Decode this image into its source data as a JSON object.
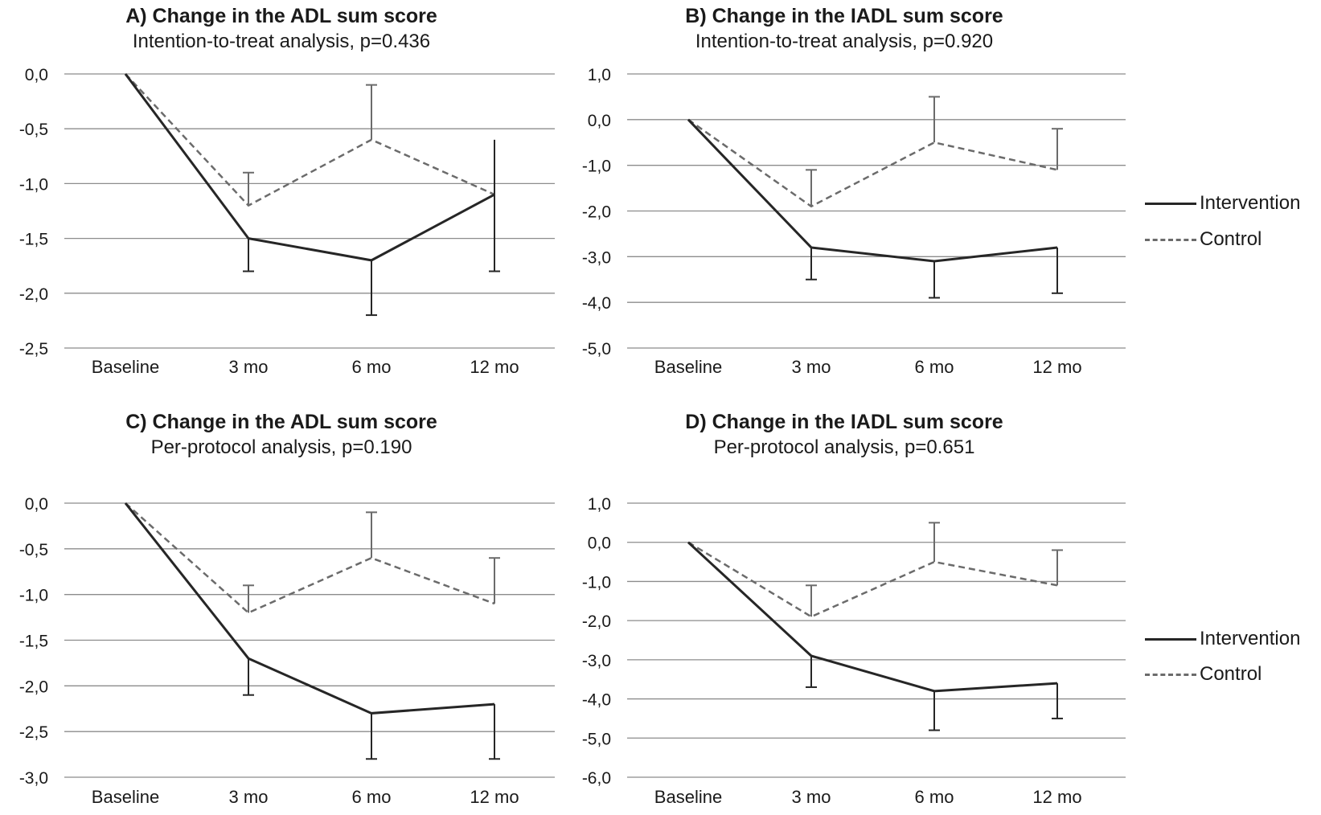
{
  "chart_data": [
    {
      "type": "line",
      "title": "A) Change in the ADL sum score",
      "subtitle": "Intention-to-treat analysis, p=0.436",
      "categories": [
        "Baseline",
        "3 mo",
        "6 mo",
        "12 mo"
      ],
      "ylim": [
        -2.5,
        0.0
      ],
      "yticks": [
        0.0,
        -0.5,
        -1.0,
        -1.5,
        -2.0,
        -2.5
      ],
      "ytick_labels": [
        "0,0",
        "-0,5",
        "-1,0",
        "-1,5",
        "-2,0",
        "-2,5"
      ],
      "grid": true,
      "series": [
        {
          "name": "Intervention",
          "values": [
            0.0,
            -1.5,
            -1.7,
            -1.1
          ],
          "err_lower": [
            null,
            -1.8,
            -2.2,
            -1.8
          ],
          "err_upper": [
            null,
            -1.5,
            -1.7,
            -0.6
          ],
          "color": "#262626",
          "dash": "solid"
        },
        {
          "name": "Control",
          "values": [
            0.0,
            -1.2,
            -0.6,
            -1.1
          ],
          "err_lower": [
            null,
            -1.2,
            -0.6,
            -1.1
          ],
          "err_upper": [
            null,
            -0.9,
            -0.1,
            -1.1
          ],
          "color": "#6b6b6b",
          "dash": "dashed"
        }
      ]
    },
    {
      "type": "line",
      "title": "B) Change in the IADL sum score",
      "subtitle": "Intention-to-treat analysis, p=0.920",
      "categories": [
        "Baseline",
        "3 mo",
        "6 mo",
        "12 mo"
      ],
      "ylim": [
        -5.0,
        1.0
      ],
      "yticks": [
        1.0,
        0.0,
        -1.0,
        -2.0,
        -3.0,
        -4.0,
        -5.0
      ],
      "ytick_labels": [
        "1,0",
        "0,0",
        "-1,0",
        "-2,0",
        "-3,0",
        "-4,0",
        "-5,0"
      ],
      "grid": true,
      "legend": "right",
      "series": [
        {
          "name": "Intervention",
          "values": [
            0.0,
            -2.8,
            -3.1,
            -2.8
          ],
          "err_lower": [
            null,
            -3.5,
            -3.9,
            -3.8
          ],
          "err_upper": [
            null,
            -2.8,
            -3.1,
            -2.8
          ],
          "color": "#262626",
          "dash": "solid"
        },
        {
          "name": "Control",
          "values": [
            0.0,
            -1.9,
            -0.5,
            -1.1
          ],
          "err_lower": [
            null,
            -1.9,
            -0.5,
            -1.1
          ],
          "err_upper": [
            null,
            -1.1,
            0.5,
            -0.2
          ],
          "color": "#6b6b6b",
          "dash": "dashed"
        }
      ]
    },
    {
      "type": "line",
      "title": "C) Change in the ADL sum score",
      "subtitle": "Per-protocol analysis, p=0.190",
      "categories": [
        "Baseline",
        "3 mo",
        "6 mo",
        "12 mo"
      ],
      "ylim": [
        -3.0,
        0.0
      ],
      "yticks": [
        0.0,
        -0.5,
        -1.0,
        -1.5,
        -2.0,
        -2.5,
        -3.0
      ],
      "ytick_labels": [
        "0,0",
        "-0,5",
        "-1,0",
        "-1,5",
        "-2,0",
        "-2,5",
        "-3,0"
      ],
      "grid": true,
      "series": [
        {
          "name": "Intervention",
          "values": [
            0.0,
            -1.7,
            -2.3,
            -2.2
          ],
          "err_lower": [
            null,
            -2.1,
            -2.8,
            -2.8
          ],
          "err_upper": [
            null,
            -1.7,
            -2.3,
            -2.2
          ],
          "color": "#262626",
          "dash": "solid"
        },
        {
          "name": "Control",
          "values": [
            0.0,
            -1.2,
            -0.6,
            -1.1
          ],
          "err_lower": [
            null,
            -1.2,
            -0.6,
            -1.1
          ],
          "err_upper": [
            null,
            -0.9,
            -0.1,
            -0.6
          ],
          "color": "#6b6b6b",
          "dash": "dashed"
        }
      ]
    },
    {
      "type": "line",
      "title": "D) Change in the IADL sum score",
      "subtitle": "Per-protocol analysis, p=0.651",
      "categories": [
        "Baseline",
        "3 mo",
        "6 mo",
        "12 mo"
      ],
      "ylim": [
        -6.0,
        1.0
      ],
      "yticks": [
        1.0,
        0.0,
        -1.0,
        -2.0,
        -3.0,
        -4.0,
        -5.0,
        -6.0
      ],
      "ytick_labels": [
        "1,0",
        "0,0",
        "-1,0",
        "-2,0",
        "-3,0",
        "-4,0",
        "-5,0",
        "-6,0"
      ],
      "grid": true,
      "legend": "right",
      "series": [
        {
          "name": "Intervention",
          "values": [
            0.0,
            -2.9,
            -3.8,
            -3.6
          ],
          "err_lower": [
            null,
            -3.7,
            -4.8,
            -4.5
          ],
          "err_upper": [
            null,
            -2.9,
            -3.8,
            -3.6
          ],
          "color": "#262626",
          "dash": "solid"
        },
        {
          "name": "Control",
          "values": [
            0.0,
            -1.9,
            -0.5,
            -1.1
          ],
          "err_lower": [
            null,
            -1.9,
            -0.5,
            -1.1
          ],
          "err_upper": [
            null,
            -1.1,
            0.5,
            -0.2
          ],
          "color": "#6b6b6b",
          "dash": "dashed"
        }
      ]
    }
  ],
  "legend_top": {
    "items": [
      {
        "label": "Intervention"
      },
      {
        "label": "Control"
      }
    ]
  },
  "legend_bottom": {
    "items": [
      {
        "label": "Intervention"
      },
      {
        "label": "Control"
      }
    ]
  }
}
